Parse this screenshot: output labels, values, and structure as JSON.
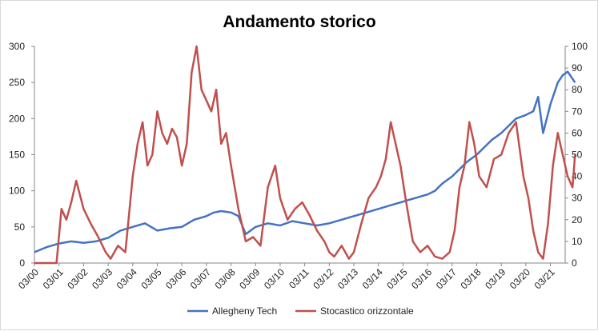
{
  "chart_data": {
    "type": "line",
    "title": "Andamento storico",
    "xlabel": "",
    "ylabel": "",
    "x_ticks": [
      "03/00",
      "03/01",
      "03/02",
      "03/03",
      "03/04",
      "03/05",
      "03/06",
      "03/07",
      "03/08",
      "03/09",
      "03/10",
      "03/11",
      "03/12",
      "03/13",
      "03/14",
      "03/15",
      "03/16",
      "03/17",
      "03/18",
      "03/19",
      "03/20",
      "03/21"
    ],
    "y_left": {
      "min": 0,
      "max": 300,
      "ticks": [
        0,
        50,
        100,
        150,
        200,
        250,
        300
      ]
    },
    "y_right": {
      "min": 0,
      "max": 100,
      "ticks": [
        0,
        10,
        20,
        30,
        40,
        50,
        60,
        70,
        80,
        90,
        100
      ]
    },
    "grid": false,
    "legend_position": "bottom",
    "series": [
      {
        "name": "Allegheny Tech",
        "axis": "left",
        "color": "#4472c4",
        "x": [
          0,
          0.5,
          1,
          1.5,
          2,
          2.5,
          3,
          3.5,
          4,
          4.5,
          5,
          5.5,
          6,
          6.5,
          7,
          7.3,
          7.6,
          8,
          8.3,
          8.6,
          9,
          9.5,
          10,
          10.5,
          11,
          11.5,
          12,
          12.5,
          13,
          13.5,
          14,
          14.5,
          15,
          15.5,
          16,
          16.3,
          16.6,
          17,
          17.3,
          17.6,
          18,
          18.3,
          18.6,
          19,
          19.3,
          19.6,
          20,
          20.3,
          20.5,
          20.7,
          21,
          21.3,
          21.5,
          21.7,
          22
        ],
        "values": [
          15,
          22,
          27,
          30,
          28,
          30,
          35,
          45,
          50,
          55,
          45,
          48,
          50,
          60,
          65,
          70,
          72,
          70,
          65,
          40,
          50,
          55,
          52,
          58,
          55,
          52,
          55,
          60,
          65,
          70,
          75,
          80,
          85,
          90,
          95,
          100,
          110,
          120,
          130,
          140,
          150,
          160,
          170,
          180,
          190,
          200,
          205,
          210,
          230,
          180,
          220,
          250,
          260,
          265,
          250
        ]
      },
      {
        "name": "Stocastico orizzontale",
        "axis": "right",
        "color": "#c0504d",
        "x": [
          0,
          0.3,
          0.6,
          0.9,
          1.1,
          1.3,
          1.5,
          1.7,
          2,
          2.3,
          2.6,
          2.9,
          3.1,
          3.4,
          3.7,
          4,
          4.2,
          4.4,
          4.6,
          4.8,
          5,
          5.2,
          5.4,
          5.6,
          5.8,
          6,
          6.2,
          6.4,
          6.6,
          6.8,
          7,
          7.2,
          7.4,
          7.6,
          7.8,
          8,
          8.3,
          8.6,
          8.9,
          9.2,
          9.5,
          9.8,
          10,
          10.3,
          10.6,
          10.9,
          11.2,
          11.5,
          11.8,
          12,
          12.2,
          12.5,
          12.8,
          13,
          13.3,
          13.6,
          13.9,
          14.1,
          14.3,
          14.5,
          14.7,
          14.9,
          15.1,
          15.4,
          15.7,
          16,
          16.3,
          16.6,
          16.9,
          17.1,
          17.3,
          17.5,
          17.7,
          17.9,
          18.1,
          18.4,
          18.7,
          19,
          19.3,
          19.6,
          19.9,
          20.1,
          20.3,
          20.5,
          20.7,
          20.9,
          21.1,
          21.3,
          21.5,
          21.7,
          21.9,
          22
        ],
        "values": [
          0,
          0,
          0,
          0,
          25,
          20,
          28,
          38,
          25,
          18,
          12,
          5,
          2,
          8,
          5,
          40,
          55,
          65,
          45,
          50,
          70,
          60,
          55,
          62,
          58,
          45,
          55,
          88,
          100,
          80,
          75,
          70,
          80,
          55,
          60,
          45,
          25,
          10,
          12,
          8,
          35,
          45,
          30,
          20,
          25,
          28,
          22,
          15,
          10,
          5,
          3,
          8,
          2,
          5,
          18,
          30,
          35,
          40,
          48,
          65,
          55,
          45,
          30,
          10,
          5,
          8,
          3,
          2,
          5,
          15,
          35,
          45,
          65,
          55,
          40,
          35,
          48,
          50,
          60,
          65,
          40,
          30,
          15,
          5,
          2,
          18,
          45,
          60,
          50,
          40,
          35,
          50
        ]
      }
    ]
  }
}
